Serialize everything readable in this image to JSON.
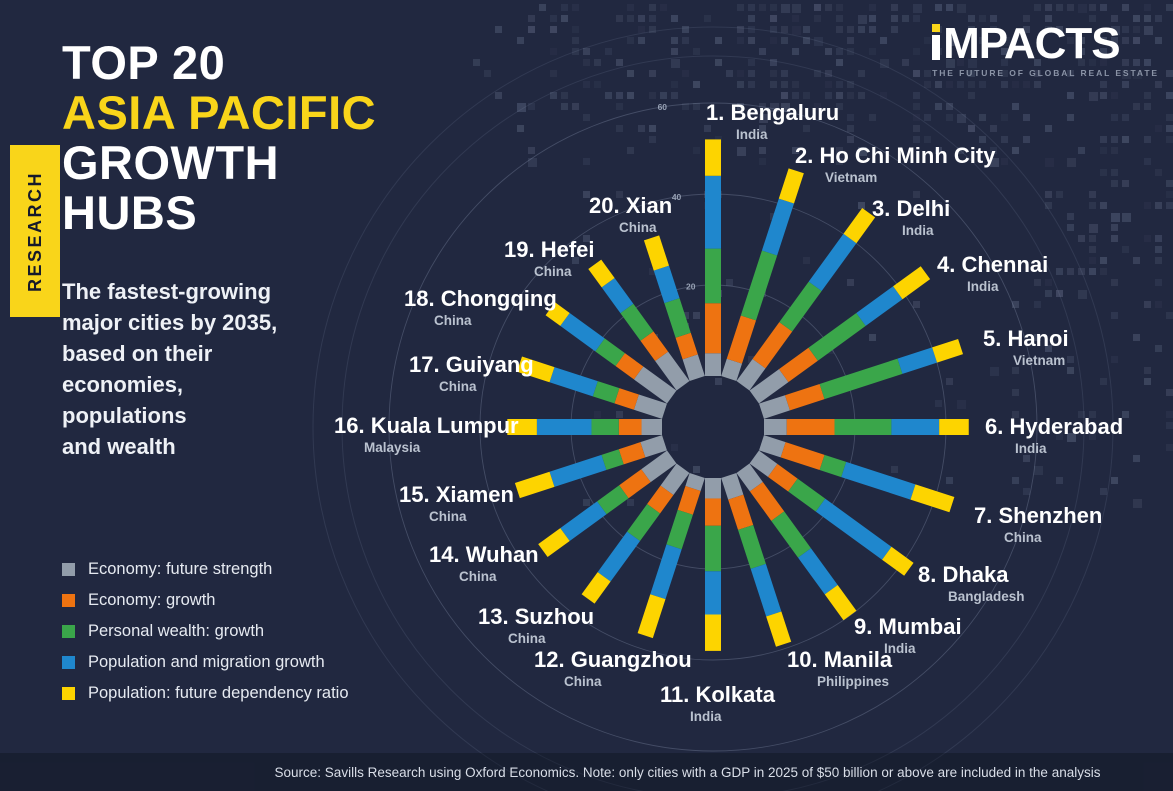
{
  "research_tab": "RESEARCH",
  "title": {
    "line1": "TOP 20",
    "line2": "ASIA PACIFIC",
    "line3": "GROWTH",
    "line4": "HUBS"
  },
  "subtitle_lines": [
    "The fastest-growing",
    "major cities by 2035,",
    "based on their",
    "economies,",
    "populations",
    "and wealth"
  ],
  "logo": {
    "brand": "iMPACTS",
    "tagline": "THE FUTURE OF GLOBAL REAL ESTATE"
  },
  "source_note": "Source: Savills Research using Oxford Economics. Note: only cities with a GDP in 2025 of $50 billion or above are included in the analysis",
  "colors": {
    "background": "#212840",
    "title_accent": "#f9d51a",
    "economy_future_strength": "#929daa",
    "economy_growth": "#ee7311",
    "personal_wealth_growth": "#3aa64a",
    "population_migration_growth": "#1f87cd",
    "population_dependency_ratio": "#fdd400"
  },
  "legend": [
    {
      "key": "economy_future_strength",
      "label": "Economy: future strength"
    },
    {
      "key": "economy_growth",
      "label": "Economy: growth"
    },
    {
      "key": "personal_wealth_growth",
      "label": "Personal wealth: growth"
    },
    {
      "key": "population_migration_growth",
      "label": "Population and migration growth"
    },
    {
      "key": "population_dependency_ratio",
      "label": "Population: future dependency ratio"
    }
  ],
  "chart_data": {
    "type": "radial-stacked-bar",
    "title": "Top 20 Asia Pacific growth hubs",
    "ring_ticks": [
      20,
      40,
      60
    ],
    "angle_step_deg": 18,
    "legend_position": "bottom-left",
    "stack_order": [
      "economy_future_strength",
      "economy_growth",
      "personal_wealth_growth",
      "population_migration_growth",
      "population_dependency_ratio"
    ],
    "cities": [
      {
        "rank": 1,
        "name": "Bengaluru",
        "country": "India",
        "values": [
          5,
          11,
          12,
          16,
          8
        ]
      },
      {
        "rank": 2,
        "name": "Ho Chi Minh City",
        "country": "Vietnam",
        "values": [
          4,
          10,
          15,
          12,
          7
        ]
      },
      {
        "rank": 3,
        "name": "Delhi",
        "country": "India",
        "values": [
          6,
          10,
          11,
          13,
          7
        ]
      },
      {
        "rank": 4,
        "name": "Chennai",
        "country": "India",
        "values": [
          8,
          8,
          13,
          10,
          7.5
        ]
      },
      {
        "rank": 5,
        "name": "Hanoi",
        "country": "Vietnam",
        "values": [
          6,
          8,
          18,
          8,
          6
        ]
      },
      {
        "rank": 6,
        "name": "Hyderabad",
        "country": "India",
        "values": [
          5,
          10.5,
          12.5,
          10.5,
          6.5
        ]
      },
      {
        "rank": 7,
        "name": "Shenzhen",
        "country": "China",
        "values": [
          5,
          9,
          5,
          16,
          9
        ]
      },
      {
        "rank": 8,
        "name": "Dhaka",
        "country": "Bangladesh",
        "values": [
          5,
          5.5,
          7.5,
          18,
          6
        ]
      },
      {
        "rank": 9,
        "name": "Mumbai",
        "country": "India",
        "values": [
          5,
          8,
          10,
          10,
          7
        ]
      },
      {
        "rank": 10,
        "name": "Manila",
        "country": "Philippines",
        "values": [
          5,
          7,
          9,
          11,
          7
        ]
      },
      {
        "rank": 11,
        "name": "Kolkata",
        "country": "India",
        "values": [
          4.5,
          6,
          10,
          9.5,
          8
        ]
      },
      {
        "rank": 12,
        "name": "Guangzhou",
        "country": "China",
        "values": [
          3,
          5.5,
          8,
          11.5,
          9
        ]
      },
      {
        "rank": 13,
        "name": "Suzhou",
        "country": "China",
        "values": [
          6,
          5,
          7.5,
          11,
          6
        ]
      },
      {
        "rank": 14,
        "name": "Wuhan",
        "country": "China",
        "values": [
          7,
          6,
          6,
          10,
          6
        ]
      },
      {
        "rank": 15,
        "name": "Xiamen",
        "country": "China",
        "values": [
          5,
          5,
          4,
          12,
          8
        ]
      },
      {
        "rank": 16,
        "name": "Kuala Lumpur",
        "country": "Malaysia",
        "values": [
          4.5,
          5,
          6,
          12,
          6.5
        ]
      },
      {
        "rank": 17,
        "name": "Guiyang",
        "country": "China",
        "values": [
          6.5,
          4.5,
          5,
          10,
          7.5
        ]
      },
      {
        "rank": 18,
        "name": "Chongqing",
        "country": "China",
        "values": [
          9,
          5,
          5.5,
          9.5,
          4
        ]
      },
      {
        "rank": 19,
        "name": "Hefei",
        "country": "China",
        "values": [
          8,
          5.5,
          7.5,
          7,
          5
        ]
      },
      {
        "rank": 20,
        "name": "Xian",
        "country": "China",
        "values": [
          5,
          5,
          8,
          7.5,
          7
        ]
      }
    ]
  }
}
